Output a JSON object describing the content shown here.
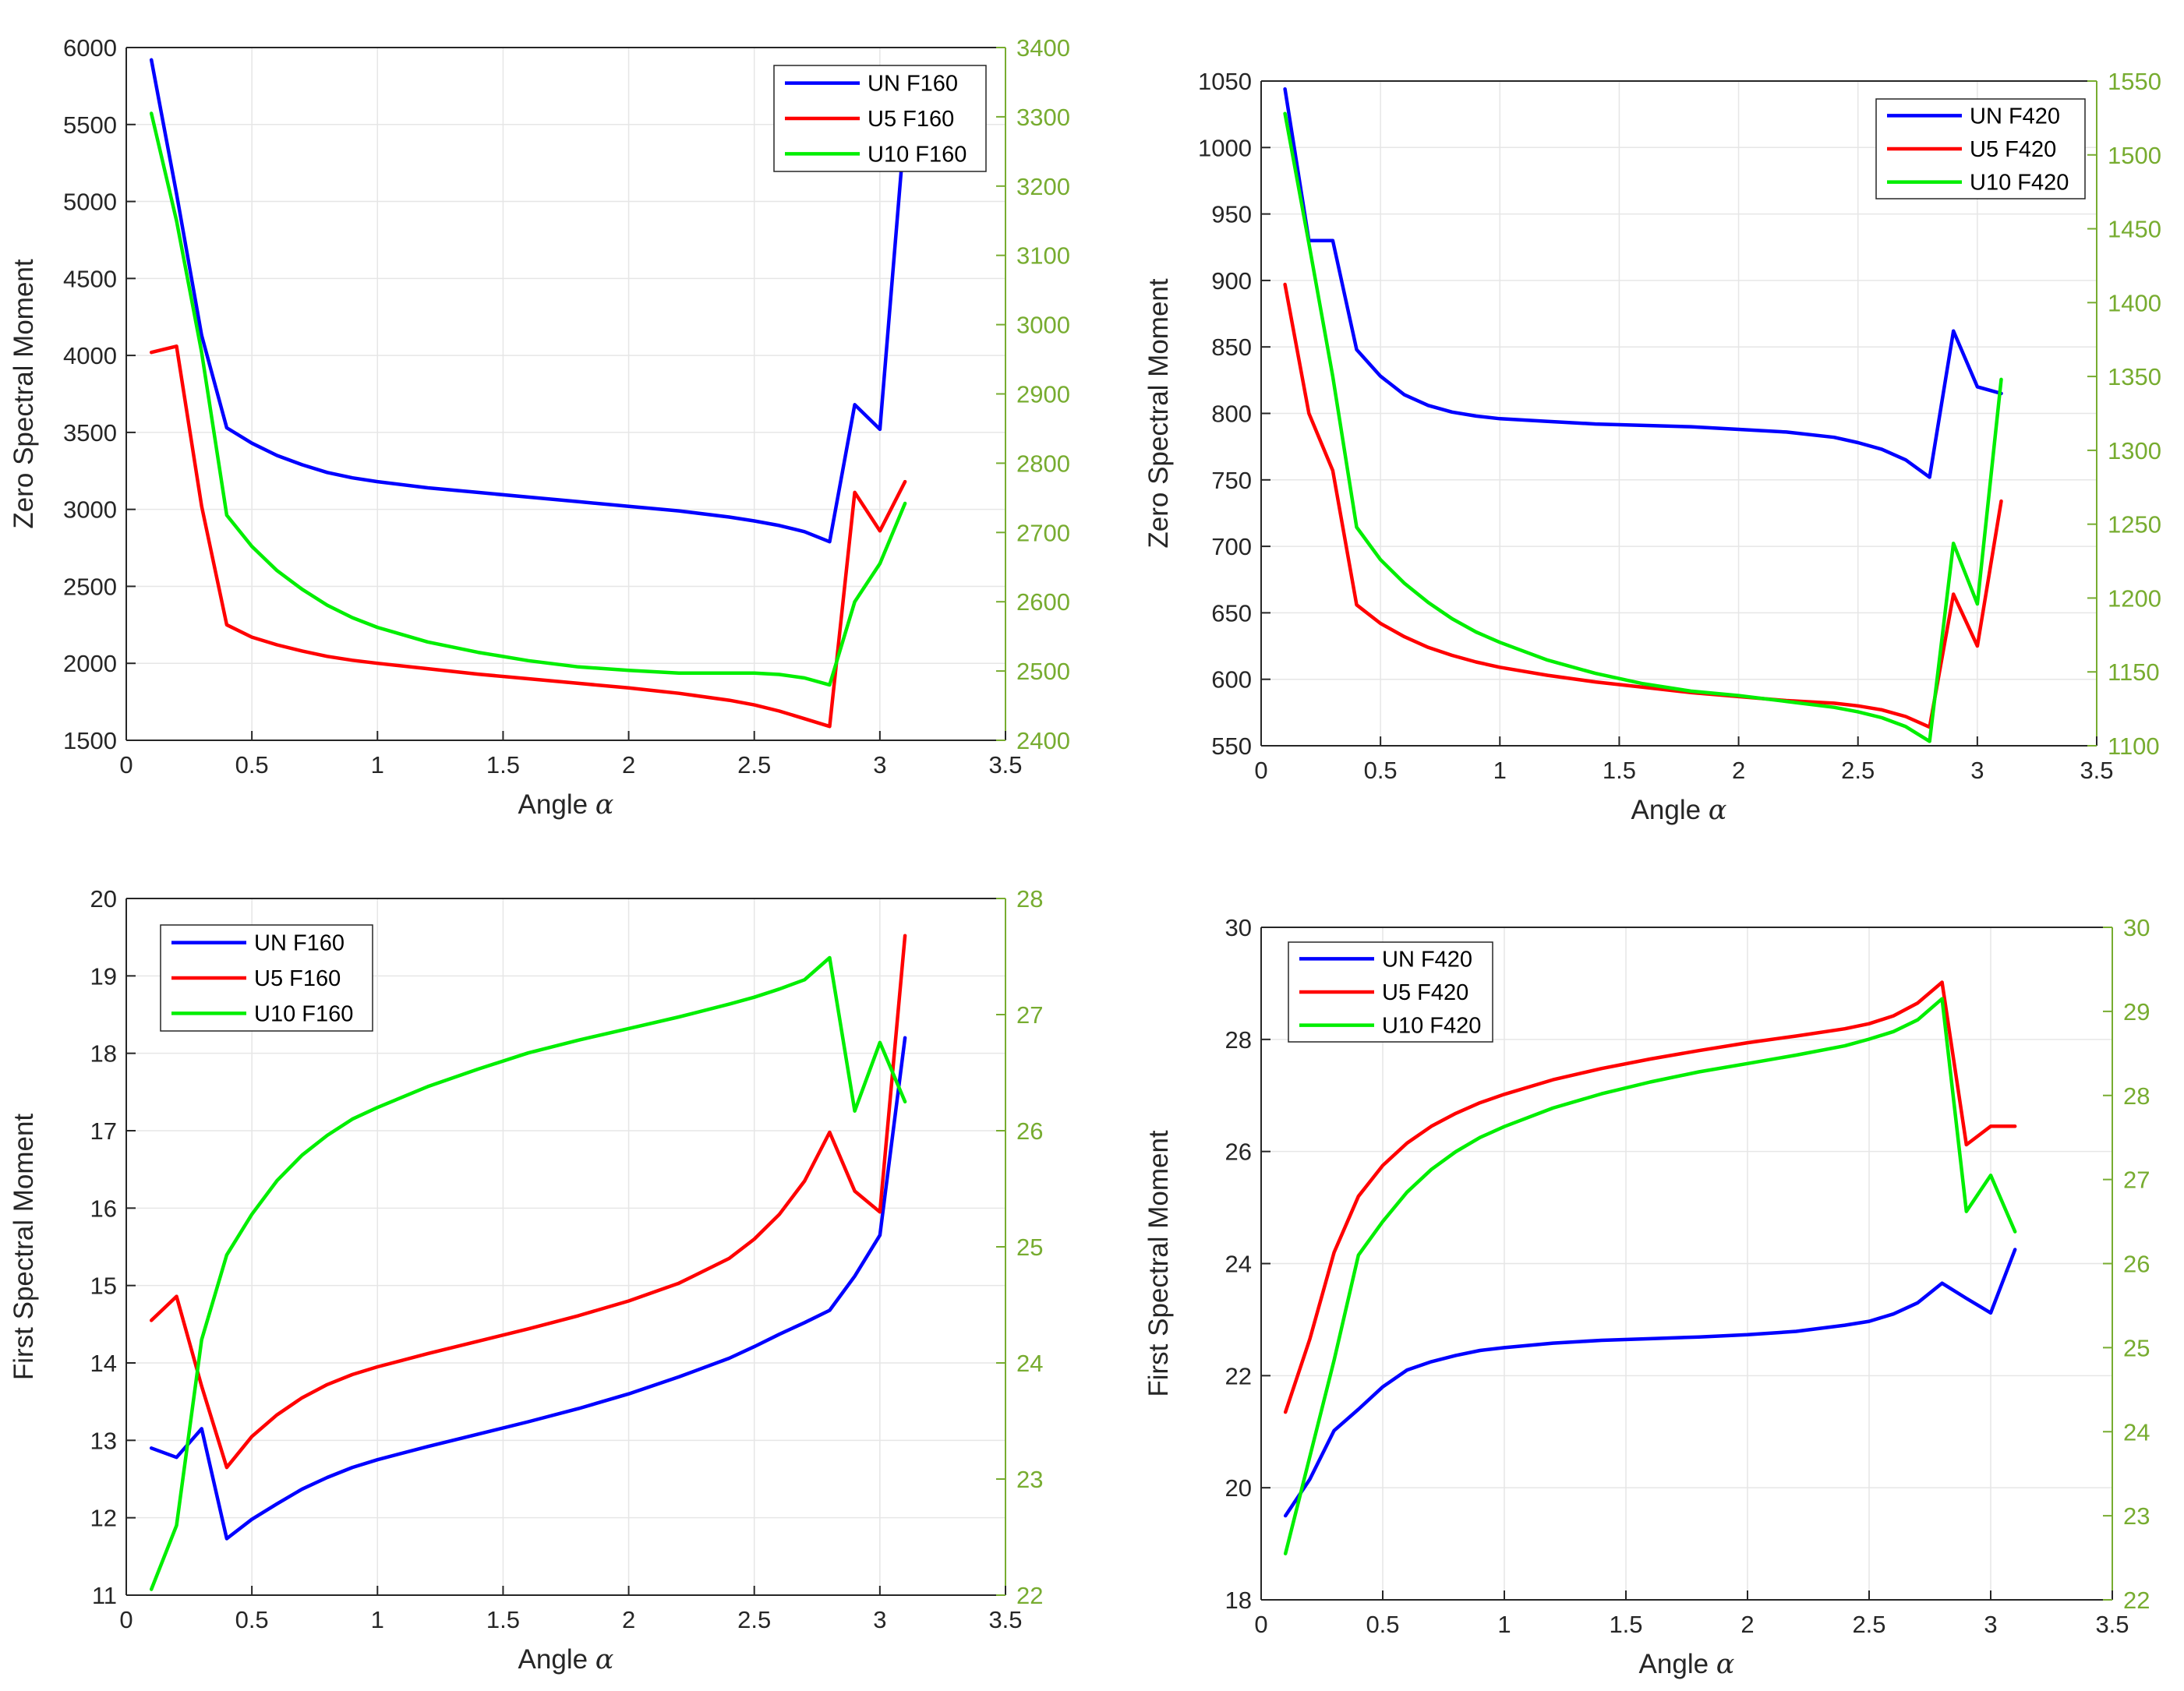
{
  "chart_data": [
    {
      "type": "line",
      "panel": "top-left",
      "xlabel": "Angle",
      "xsymbol": "α",
      "ylabel": "Zero Spectral Moment",
      "xlim": [
        0,
        3.5
      ],
      "ylim_left": [
        1500,
        6000
      ],
      "ylim_right": [
        2400,
        3400
      ],
      "xticks": [
        "0",
        "0.5",
        "1",
        "1.5",
        "2",
        "2.5",
        "3",
        "3.5"
      ],
      "yticks_left": [
        "1500",
        "2000",
        "2500",
        "3000",
        "3500",
        "4000",
        "4500",
        "5000",
        "5500",
        "6000"
      ],
      "yticks_right": [
        "2400",
        "2500",
        "2600",
        "2700",
        "2800",
        "2900",
        "3000",
        "3100",
        "3200",
        "3300",
        "3400"
      ],
      "grid": true,
      "legend_position": "top-right",
      "series": [
        {
          "name": "UN F160",
          "color": "#0000ff",
          "axis": "left",
          "x": [
            0.1,
            0.2,
            0.3,
            0.4,
            0.5,
            0.6,
            0.7,
            0.8,
            0.9,
            1.0,
            1.2,
            1.4,
            1.6,
            1.8,
            2.0,
            2.2,
            2.4,
            2.5,
            2.6,
            2.7,
            2.8,
            2.9,
            3.0,
            3.1
          ],
          "y": [
            5920,
            5050,
            4130,
            3530,
            3430,
            3350,
            3290,
            3240,
            3205,
            3180,
            3140,
            3110,
            3080,
            3050,
            3020,
            2990,
            2950,
            2925,
            2895,
            2855,
            2790,
            3680,
            3520,
            5500
          ]
        },
        {
          "name": "U5 F160",
          "color": "#ff0000",
          "axis": "left",
          "x": [
            0.1,
            0.2,
            0.3,
            0.4,
            0.5,
            0.6,
            0.7,
            0.8,
            0.9,
            1.0,
            1.2,
            1.4,
            1.6,
            1.8,
            2.0,
            2.2,
            2.4,
            2.5,
            2.6,
            2.7,
            2.8,
            2.9,
            3.0,
            3.1
          ],
          "y": [
            4020,
            4060,
            3020,
            2250,
            2170,
            2120,
            2080,
            2045,
            2020,
            2000,
            1965,
            1930,
            1900,
            1870,
            1840,
            1805,
            1760,
            1730,
            1690,
            1640,
            1590,
            3110,
            2860,
            3180
          ]
        },
        {
          "name": "U10 F160",
          "color": "#00ee00",
          "axis": "right",
          "x": [
            0.1,
            0.2,
            0.3,
            0.4,
            0.5,
            0.6,
            0.7,
            0.8,
            0.9,
            1.0,
            1.2,
            1.4,
            1.6,
            1.8,
            2.0,
            2.2,
            2.4,
            2.5,
            2.6,
            2.7,
            2.8,
            2.9,
            3.0,
            3.1
          ],
          "y": [
            3305,
            3150,
            2960,
            2725,
            2680,
            2645,
            2618,
            2595,
            2577,
            2563,
            2542,
            2527,
            2515,
            2506,
            2501,
            2497,
            2497,
            2497,
            2495,
            2490,
            2480,
            2600,
            2655,
            2742
          ]
        }
      ]
    },
    {
      "type": "line",
      "panel": "top-right",
      "xlabel": "Angle",
      "xsymbol": "α",
      "ylabel": "Zero Spectral Moment",
      "xlim": [
        0,
        3.5
      ],
      "ylim_left": [
        550,
        1050
      ],
      "ylim_right": [
        1100,
        1550
      ],
      "xticks": [
        "0",
        "0.5",
        "1",
        "1.5",
        "2",
        "2.5",
        "3",
        "3.5"
      ],
      "yticks_left": [
        "550",
        "600",
        "650",
        "700",
        "750",
        "800",
        "850",
        "900",
        "950",
        "1000",
        "1050"
      ],
      "yticks_right": [
        "1100",
        "1150",
        "1200",
        "1250",
        "1300",
        "1350",
        "1400",
        "1450",
        "1500",
        "1550"
      ],
      "grid": true,
      "legend_position": "top-right",
      "series": [
        {
          "name": "UN F420",
          "color": "#0000ff",
          "axis": "left",
          "x": [
            0.1,
            0.2,
            0.3,
            0.4,
            0.5,
            0.6,
            0.7,
            0.8,
            0.9,
            1.0,
            1.2,
            1.4,
            1.6,
            1.8,
            2.0,
            2.2,
            2.4,
            2.5,
            2.6,
            2.7,
            2.8,
            2.9,
            3.0,
            3.1
          ],
          "y": [
            1044,
            930,
            930,
            848,
            828,
            814,
            806,
            801,
            798,
            796,
            794,
            792,
            791,
            790,
            788,
            786,
            782,
            778,
            773,
            765,
            752,
            862,
            820,
            815
          ]
        },
        {
          "name": "U5 F420",
          "color": "#ff0000",
          "axis": "left",
          "x": [
            0.1,
            0.2,
            0.3,
            0.4,
            0.5,
            0.6,
            0.7,
            0.8,
            0.9,
            1.0,
            1.2,
            1.4,
            1.6,
            1.8,
            2.0,
            2.2,
            2.4,
            2.5,
            2.6,
            2.7,
            2.8,
            2.9,
            3.0,
            3.1
          ],
          "y": [
            897,
            800,
            757,
            656,
            642,
            632,
            624,
            618,
            613,
            609,
            603,
            598,
            594,
            590,
            587,
            584,
            582,
            580,
            577,
            572,
            564,
            664,
            625,
            734
          ]
        },
        {
          "name": "U10 F420",
          "color": "#00ee00",
          "axis": "right",
          "x": [
            0.1,
            0.2,
            0.3,
            0.4,
            0.5,
            0.6,
            0.7,
            0.8,
            0.9,
            1.0,
            1.2,
            1.4,
            1.6,
            1.8,
            2.0,
            2.2,
            2.4,
            2.5,
            2.6,
            2.7,
            2.8,
            2.9,
            3.0,
            3.1
          ],
          "y": [
            1528,
            1440,
            1350,
            1248,
            1226,
            1210,
            1197,
            1186,
            1177,
            1170,
            1158,
            1149,
            1142,
            1137,
            1134,
            1130,
            1126,
            1123,
            1119,
            1113,
            1103,
            1237,
            1196,
            1348
          ]
        }
      ]
    },
    {
      "type": "line",
      "panel": "bottom-left",
      "xlabel": "Angle",
      "xsymbol": "α",
      "ylabel": "First Spectral Moment",
      "xlim": [
        0,
        3.5
      ],
      "ylim_left": [
        11,
        20
      ],
      "ylim_right": [
        22,
        28
      ],
      "xticks": [
        "0",
        "0.5",
        "1",
        "1.5",
        "2",
        "2.5",
        "3",
        "3.5"
      ],
      "yticks_left": [
        "11",
        "12",
        "13",
        "14",
        "15",
        "16",
        "17",
        "18",
        "19",
        "20"
      ],
      "yticks_right": [
        "22",
        "23",
        "24",
        "25",
        "26",
        "27",
        "28"
      ],
      "grid": true,
      "legend_position": "top-left",
      "series": [
        {
          "name": "UN F160",
          "color": "#0000ff",
          "axis": "left",
          "x": [
            0.1,
            0.2,
            0.3,
            0.4,
            0.5,
            0.6,
            0.7,
            0.8,
            0.9,
            1.0,
            1.2,
            1.4,
            1.6,
            1.8,
            2.0,
            2.2,
            2.4,
            2.5,
            2.6,
            2.7,
            2.8,
            2.9,
            3.0,
            3.1
          ],
          "y": [
            12.9,
            12.78,
            13.15,
            11.73,
            11.98,
            12.18,
            12.37,
            12.52,
            12.65,
            12.75,
            12.92,
            13.08,
            13.24,
            13.41,
            13.6,
            13.82,
            14.06,
            14.21,
            14.37,
            14.52,
            14.68,
            15.12,
            15.65,
            18.2
          ]
        },
        {
          "name": "U5 F160",
          "color": "#ff0000",
          "axis": "left",
          "x": [
            0.1,
            0.2,
            0.3,
            0.4,
            0.5,
            0.6,
            0.7,
            0.8,
            0.9,
            1.0,
            1.2,
            1.4,
            1.6,
            1.8,
            2.0,
            2.2,
            2.4,
            2.5,
            2.6,
            2.7,
            2.8,
            2.9,
            3.0,
            3.1
          ],
          "y": [
            14.55,
            14.86,
            13.7,
            12.65,
            13.05,
            13.33,
            13.55,
            13.72,
            13.85,
            13.95,
            14.12,
            14.28,
            14.44,
            14.61,
            14.8,
            15.03,
            15.35,
            15.6,
            15.92,
            16.35,
            16.98,
            16.22,
            15.95,
            19.52
          ]
        },
        {
          "name": "U10 F160",
          "color": "#00ee00",
          "axis": "right",
          "x": [
            0.1,
            0.2,
            0.3,
            0.4,
            0.5,
            0.6,
            0.7,
            0.8,
            0.9,
            1.0,
            1.2,
            1.4,
            1.6,
            1.8,
            2.0,
            2.2,
            2.4,
            2.5,
            2.6,
            2.7,
            2.8,
            2.9,
            3.0,
            3.1
          ],
          "y": [
            22.05,
            22.6,
            24.2,
            24.93,
            25.28,
            25.57,
            25.79,
            25.96,
            26.1,
            26.2,
            26.38,
            26.53,
            26.67,
            26.78,
            26.88,
            26.98,
            27.09,
            27.15,
            27.22,
            27.3,
            27.49,
            26.17,
            26.76,
            26.25
          ]
        }
      ]
    },
    {
      "type": "line",
      "panel": "bottom-right",
      "xlabel": "Angle",
      "xsymbol": "α",
      "ylabel": "First Spectral Moment",
      "xlim": [
        0,
        3.5
      ],
      "ylim_left": [
        18,
        30
      ],
      "ylim_right": [
        22,
        30
      ],
      "xticks": [
        "0",
        "0.5",
        "1",
        "1.5",
        "2",
        "2.5",
        "3",
        "3.5"
      ],
      "yticks_left": [
        "18",
        "20",
        "22",
        "24",
        "26",
        "28",
        "30"
      ],
      "yticks_right": [
        "22",
        "23",
        "24",
        "25",
        "26",
        "27",
        "28",
        "29",
        "30"
      ],
      "grid": true,
      "legend_position": "top-left",
      "series": [
        {
          "name": "UN F420",
          "color": "#0000ff",
          "axis": "left",
          "x": [
            0.1,
            0.2,
            0.3,
            0.4,
            0.5,
            0.6,
            0.7,
            0.8,
            0.9,
            1.0,
            1.2,
            1.4,
            1.6,
            1.8,
            2.0,
            2.2,
            2.4,
            2.5,
            2.6,
            2.7,
            2.8,
            2.9,
            3.0,
            3.1
          ],
          "y": [
            19.5,
            20.15,
            21.02,
            21.4,
            21.8,
            22.1,
            22.25,
            22.36,
            22.45,
            22.5,
            22.58,
            22.63,
            22.66,
            22.69,
            22.73,
            22.79,
            22.9,
            22.97,
            23.1,
            23.3,
            23.65,
            23.38,
            23.12,
            24.25
          ]
        },
        {
          "name": "U5 F420",
          "color": "#ff0000",
          "axis": "left",
          "x": [
            0.1,
            0.2,
            0.3,
            0.4,
            0.5,
            0.6,
            0.7,
            0.8,
            0.9,
            1.0,
            1.2,
            1.4,
            1.6,
            1.8,
            2.0,
            2.2,
            2.4,
            2.5,
            2.6,
            2.7,
            2.8,
            2.9,
            3.0,
            3.1
          ],
          "y": [
            21.35,
            22.65,
            24.2,
            25.2,
            25.75,
            26.15,
            26.45,
            26.68,
            26.87,
            27.02,
            27.28,
            27.48,
            27.65,
            27.8,
            27.94,
            28.06,
            28.19,
            28.28,
            28.42,
            28.65,
            29.02,
            26.12,
            26.45,
            26.45
          ]
        },
        {
          "name": "U10 F420",
          "color": "#00ee00",
          "axis": "right",
          "x": [
            0.1,
            0.2,
            0.3,
            0.4,
            0.5,
            0.6,
            0.7,
            0.8,
            0.9,
            1.0,
            1.2,
            1.4,
            1.6,
            1.8,
            2.0,
            2.2,
            2.4,
            2.5,
            2.6,
            2.7,
            2.8,
            2.9,
            3.0,
            3.1
          ],
          "y": [
            22.55,
            23.7,
            24.85,
            26.1,
            26.5,
            26.85,
            27.12,
            27.33,
            27.5,
            27.63,
            27.85,
            28.02,
            28.16,
            28.28,
            28.38,
            28.48,
            28.59,
            28.67,
            28.76,
            28.9,
            29.15,
            26.62,
            27.05,
            26.38
          ]
        }
      ]
    }
  ]
}
